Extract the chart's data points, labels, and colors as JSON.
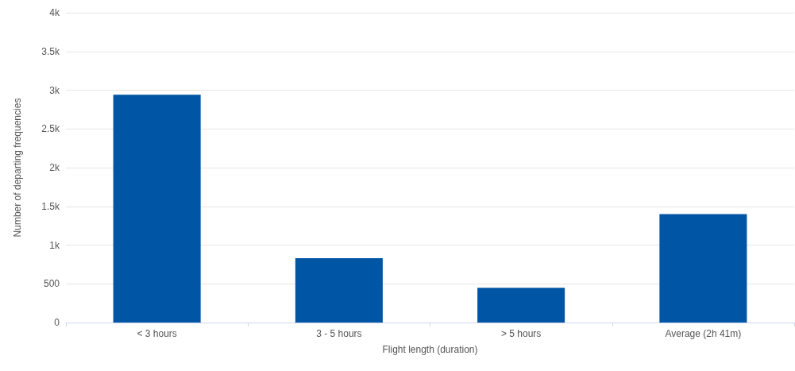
{
  "chart_data": {
    "type": "bar",
    "xlabel": "Flight length (duration)",
    "ylabel": "Number of departing frequencies",
    "categories": [
      "< 3 hours",
      "3 - 5 hours",
      "> 5 hours",
      "Average (2h 41m)"
    ],
    "values": [
      2940,
      830,
      450,
      1400
    ],
    "color": "#0055a5",
    "ylim": [
      0,
      4000
    ],
    "yticks": [
      0,
      500,
      {
        "value": 1000,
        "label": "1k"
      },
      {
        "value": 1500,
        "label": "1.5k"
      },
      {
        "value": 2000,
        "label": "2k"
      },
      {
        "value": 2500,
        "label": "2.5k"
      },
      {
        "value": 3000,
        "label": "3k"
      },
      {
        "value": 3500,
        "label": "3.5k"
      },
      {
        "value": 4000,
        "label": "4k"
      }
    ],
    "grid": "y"
  }
}
